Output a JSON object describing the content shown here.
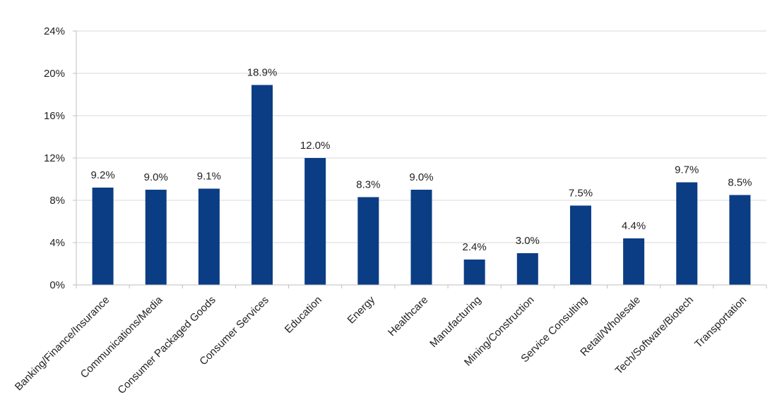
{
  "chart_data": {
    "type": "bar",
    "title": "",
    "xlabel": "",
    "ylabel": "",
    "ylim": [
      0,
      24
    ],
    "yticks": [
      "0%",
      "4%",
      "8%",
      "12%",
      "16%",
      "20%",
      "24%"
    ],
    "grid": true,
    "bar_color": "#0b3d85",
    "categories": [
      "Banking/Finance/Insurance",
      "Communications/Media",
      "Consumer Packaged Goods",
      "Consumer Services",
      "Education",
      "Energy",
      "Healthcare",
      "Manufacturing",
      "Mining/Construction",
      "Service Consulting",
      "Retail/Wholesale",
      "Tech/Software/Biotech",
      "Transportation"
    ],
    "values": [
      9.2,
      9.0,
      9.1,
      18.9,
      12.0,
      8.3,
      9.0,
      2.4,
      3.0,
      7.5,
      4.4,
      9.7,
      8.5
    ],
    "data_labels": [
      "9.2%",
      "9.0%",
      "9.1%",
      "18.9%",
      "12.0%",
      "8.3%",
      "9.0%",
      "2.4%",
      "3.0%",
      "7.5%",
      "4.4%",
      "9.7%",
      "8.5%"
    ]
  }
}
